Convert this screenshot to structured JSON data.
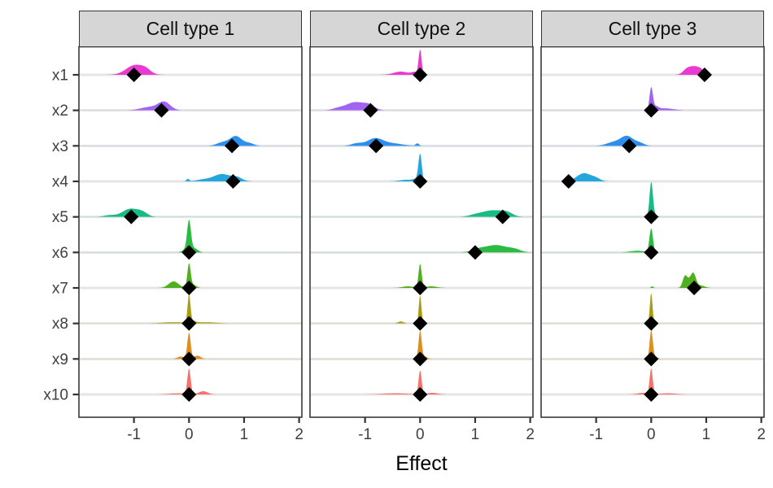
{
  "chart_data": {
    "type": "ridgeline",
    "description": "Faceted ridgeline/density plot of posterior effects per variable with black diamond point estimates",
    "facets": [
      "Cell type 1",
      "Cell type 2",
      "Cell type 3"
    ],
    "xlabel": "Effect",
    "x_ticks": [
      -1,
      0,
      1,
      2
    ],
    "x_range": [
      -2,
      2.05
    ],
    "grid": "horizontal-only",
    "variables": [
      {
        "name": "x1",
        "color": "#E93BD1"
      },
      {
        "name": "x2",
        "color": "#A163F0"
      },
      {
        "name": "x3",
        "color": "#2E8EEE"
      },
      {
        "name": "x4",
        "color": "#22A6DB"
      },
      {
        "name": "x5",
        "color": "#17BC85"
      },
      {
        "name": "x6",
        "color": "#2BBB42"
      },
      {
        "name": "x7",
        "color": "#4FAF1E"
      },
      {
        "name": "x8",
        "color": "#A89E14"
      },
      {
        "name": "x9",
        "color": "#DE8D1E"
      },
      {
        "name": "x10",
        "color": "#F5736C"
      }
    ],
    "panels": [
      {
        "facet": "Cell type 1",
        "rows": [
          {
            "var": "x1",
            "estimate": -1.0,
            "bumps": [
              [
                -0.98,
                0.16,
                12
              ],
              [
                -0.78,
                0.09,
                4
              ]
            ]
          },
          {
            "var": "x2",
            "estimate": -0.5,
            "bumps": [
              [
                -0.45,
                0.11,
                10
              ],
              [
                -0.72,
                0.16,
                4
              ]
            ]
          },
          {
            "var": "x3",
            "estimate": 0.78,
            "bumps": [
              [
                0.85,
                0.11,
                12
              ],
              [
                0.6,
                0.1,
                4
              ],
              [
                1.1,
                0.08,
                3
              ]
            ]
          },
          {
            "var": "x4",
            "estimate": 0.8,
            "bumps": [
              [
                0.6,
                0.16,
                9
              ],
              [
                0.88,
                0.09,
                4
              ],
              [
                -0.02,
                0.025,
                3
              ],
              [
                0.25,
                0.12,
                2
              ]
            ]
          },
          {
            "var": "x5",
            "estimate": -1.05,
            "bumps": [
              [
                -1.06,
                0.15,
                10
              ],
              [
                -0.84,
                0.09,
                4
              ],
              [
                -1.45,
                0.1,
                2
              ]
            ]
          },
          {
            "var": "x6",
            "estimate": 0,
            "bumps": [
              [
                0,
                0.035,
                38
              ],
              [
                0.1,
                0.06,
                5
              ],
              [
                -0.08,
                0.05,
                3
              ]
            ]
          },
          {
            "var": "x7",
            "estimate": 0,
            "bumps": [
              [
                0,
                0.03,
                29
              ],
              [
                -0.28,
                0.09,
                8
              ],
              [
                0.08,
                0.05,
                4
              ]
            ]
          },
          {
            "var": "x8",
            "estimate": 0,
            "bumps": [
              [
                0,
                0.025,
                33
              ],
              [
                0.05,
                0.06,
                3
              ],
              [
                -0.3,
                0.2,
                1.5
              ],
              [
                0.3,
                0.2,
                1.5
              ]
            ]
          },
          {
            "var": "x9",
            "estimate": 0,
            "bumps": [
              [
                0,
                0.03,
                32
              ],
              [
                0.15,
                0.06,
                4
              ],
              [
                -0.15,
                0.06,
                3
              ]
            ]
          },
          {
            "var": "x10",
            "estimate": 0,
            "bumps": [
              [
                0,
                0.03,
                31
              ],
              [
                0.26,
                0.08,
                4
              ],
              [
                -0.2,
                0.15,
                1.5
              ]
            ]
          }
        ]
      },
      {
        "facet": "Cell type 2",
        "rows": [
          {
            "var": "x1",
            "estimate": 0,
            "bumps": [
              [
                0,
                0.027,
                30
              ],
              [
                -0.35,
                0.13,
                4
              ],
              [
                -0.1,
                0.06,
                3
              ]
            ]
          },
          {
            "var": "x2",
            "estimate": -0.9,
            "bumps": [
              [
                -1.18,
                0.17,
                10
              ],
              [
                -0.92,
                0.1,
                5
              ],
              [
                -1.5,
                0.1,
                2
              ]
            ]
          },
          {
            "var": "x3",
            "estimate": -0.8,
            "bumps": [
              [
                -0.82,
                0.14,
                9
              ],
              [
                -0.5,
                0.18,
                3
              ],
              [
                -0.05,
                0.03,
                3
              ],
              [
                -1.15,
                0.1,
                3
              ]
            ]
          },
          {
            "var": "x4",
            "estimate": 0,
            "bumps": [
              [
                0,
                0.03,
                32
              ],
              [
                -0.25,
                0.12,
                2
              ],
              [
                -0.06,
                0.06,
                3
              ]
            ]
          },
          {
            "var": "x5",
            "estimate": 1.5,
            "bumps": [
              [
                1.32,
                0.19,
                8
              ],
              [
                1.58,
                0.1,
                4
              ],
              [
                1.0,
                0.12,
                2
              ]
            ]
          },
          {
            "var": "x6",
            "estimate": 1.0,
            "bumps": [
              [
                1.38,
                0.2,
                9
              ],
              [
                1.72,
                0.11,
                3
              ],
              [
                1.05,
                0.12,
                3
              ]
            ]
          },
          {
            "var": "x7",
            "estimate": 0,
            "bumps": [
              [
                0,
                0.028,
                29
              ],
              [
                -0.22,
                0.1,
                2
              ],
              [
                0.2,
                0.1,
                2
              ]
            ]
          },
          {
            "var": "x8",
            "estimate": 0,
            "bumps": [
              [
                0,
                0.024,
                34
              ],
              [
                -0.35,
                0.05,
                2.5
              ]
            ]
          },
          {
            "var": "x9",
            "estimate": 0,
            "bumps": [
              [
                0,
                0.028,
                34
              ],
              [
                0.08,
                0.05,
                3
              ]
            ]
          },
          {
            "var": "x10",
            "estimate": 0,
            "bumps": [
              [
                0,
                0.028,
                29
              ],
              [
                -0.45,
                0.22,
                1.5
              ],
              [
                0.22,
                0.1,
                2
              ]
            ]
          }
        ]
      },
      {
        "facet": "Cell type 3",
        "rows": [
          {
            "var": "x1",
            "estimate": 0.97,
            "bumps": [
              [
                0.79,
                0.1,
                10
              ],
              [
                0.64,
                0.07,
                5
              ],
              [
                0.92,
                0.06,
                3
              ]
            ]
          },
          {
            "var": "x2",
            "estimate": 0,
            "bumps": [
              [
                0,
                0.03,
                27
              ],
              [
                0.25,
                0.15,
                2.5
              ],
              [
                0.08,
                0.05,
                4
              ]
            ]
          },
          {
            "var": "x3",
            "estimate": -0.4,
            "bumps": [
              [
                -0.44,
                0.12,
                12
              ],
              [
                -0.7,
                0.12,
                4
              ],
              [
                -0.2,
                0.08,
                3
              ]
            ]
          },
          {
            "var": "x4",
            "estimate": -1.5,
            "bumps": [
              [
                -1.22,
                0.13,
                10
              ],
              [
                -1.0,
                0.08,
                3
              ]
            ]
          },
          {
            "var": "x5",
            "estimate": 0,
            "bumps": [
              [
                0,
                0.03,
                41
              ],
              [
                0.05,
                0.05,
                3
              ]
            ]
          },
          {
            "var": "x6",
            "estimate": 0,
            "bumps": [
              [
                0,
                0.032,
                29
              ],
              [
                -0.25,
                0.13,
                2
              ]
            ]
          },
          {
            "var": "x7",
            "estimate": 0.78,
            "bumps": [
              [
                0.61,
                0.04,
                13
              ],
              [
                0.77,
                0.045,
                16
              ],
              [
                0.69,
                0.05,
                8
              ],
              [
                0.9,
                0.07,
                3
              ],
              [
                0.02,
                0.02,
                2
              ]
            ]
          },
          {
            "var": "x8",
            "estimate": 0,
            "bumps": [
              [
                0,
                0.024,
                37
              ]
            ]
          },
          {
            "var": "x9",
            "estimate": 0,
            "bumps": [
              [
                0,
                0.028,
                34
              ],
              [
                0.06,
                0.05,
                3
              ]
            ]
          },
          {
            "var": "x10",
            "estimate": 0,
            "bumps": [
              [
                0,
                0.028,
                31
              ],
              [
                0.3,
                0.14,
                1.5
              ],
              [
                -0.15,
                0.1,
                2
              ]
            ]
          }
        ]
      }
    ],
    "style": {
      "grid_color": "#E5E5E5",
      "panel_border_color": "#3A3A3A",
      "strip_fill": "#D6D6D6",
      "axis_text_color": "#404040",
      "tick_color": "#333333",
      "diamond_color": "#000000",
      "background": "#FFFFFF"
    }
  }
}
